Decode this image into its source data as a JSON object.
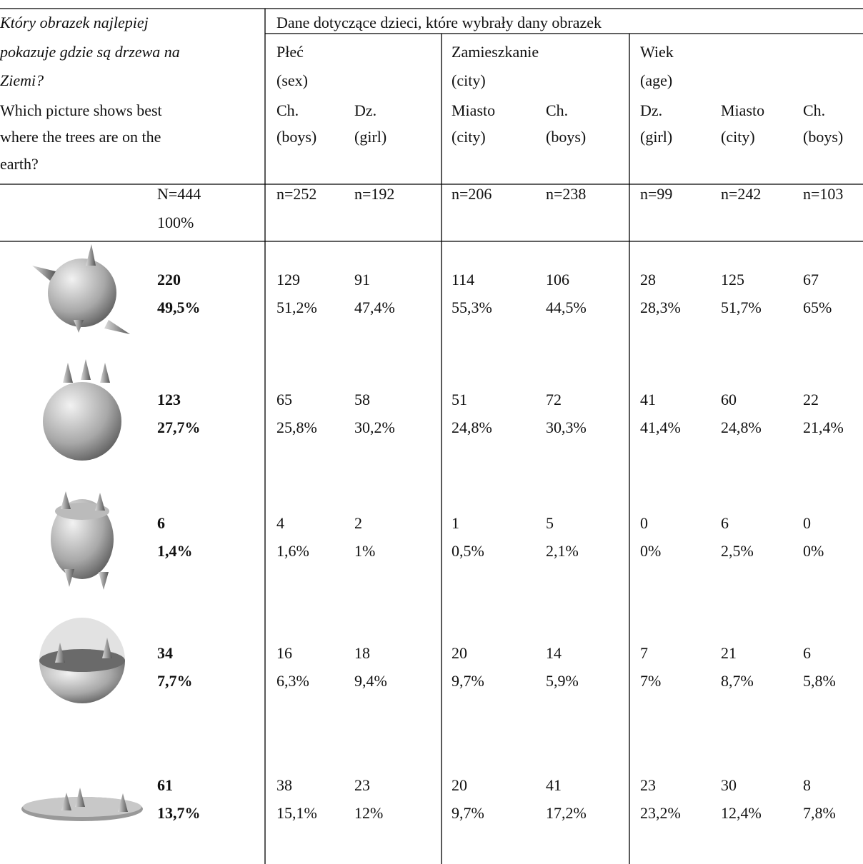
{
  "question": {
    "pl": [
      "Który obrazek najlepiej",
      "pokazuje gdzie są drzewa na",
      "Ziemi?"
    ],
    "en": [
      "Which picture shows best",
      "where the trees are on the",
      "earth?"
    ]
  },
  "group_header": "Dane dotyczące dzieci, które wybrały dany obrazek",
  "groups": [
    {
      "label": "Płeć",
      "en": "(sex)"
    },
    {
      "label": "Zamieszkanie",
      "en": "(city)"
    },
    {
      "label": "Wiek",
      "en": "(age)"
    }
  ],
  "columns": [
    {
      "label": "Ch.",
      "en": "(boys)"
    },
    {
      "label": "Dz.",
      "en": "(girl)"
    },
    {
      "label": "Miasto",
      "en": "(city)"
    },
    {
      "label": "Ch.",
      "en": "(boys)"
    },
    {
      "label": "Dz.",
      "en": "(girl)"
    },
    {
      "label": "Miasto",
      "en": "(city)"
    },
    {
      "label": "Ch.",
      "en": "(boys)"
    }
  ],
  "total": {
    "n": "N=444",
    "pct": "100%"
  },
  "column_n": [
    "n=252",
    "n=192",
    "n=206",
    "n=238",
    "n=99",
    "n=242",
    "n=103"
  ],
  "rows": [
    {
      "total": "220",
      "total_pct": "49,5%",
      "counts": [
        "129",
        "91",
        "114",
        "106",
        "28",
        "125",
        "67"
      ],
      "pcts": [
        "51,2%",
        "47,4%",
        "55,3%",
        "44,5%",
        "28,3%",
        "51,7%",
        "65%"
      ]
    },
    {
      "total": "123",
      "total_pct": "27,7%",
      "counts": [
        "65",
        "58",
        "51",
        "72",
        "41",
        "60",
        "22"
      ],
      "pcts": [
        "25,8%",
        "30,2%",
        "24,8%",
        "30,3%",
        "41,4%",
        "24,8%",
        "21,4%"
      ]
    },
    {
      "total": "6",
      "total_pct": "1,4%",
      "counts": [
        "4",
        "2",
        "1",
        "5",
        "0",
        "6",
        "0"
      ],
      "pcts": [
        "1,6%",
        "1%",
        "0,5%",
        "2,1%",
        "0%",
        "2,5%",
        "0%"
      ]
    },
    {
      "total": "34",
      "total_pct": "7,7%",
      "counts": [
        "16",
        "18",
        "20",
        "14",
        "7",
        "21",
        "6"
      ],
      "pcts": [
        "6,3%",
        "9,4%",
        "9,7%",
        "5,9%",
        "7%",
        "8,7%",
        "5,8%"
      ]
    },
    {
      "total": "61",
      "total_pct": "13,7%",
      "counts": [
        "38",
        "23",
        "20",
        "41",
        "23",
        "30",
        "8"
      ],
      "pcts": [
        "15,1%",
        "12%",
        "9,7%",
        "17,2%",
        "23,2%",
        "12,4%",
        "7,8%"
      ]
    }
  ]
}
